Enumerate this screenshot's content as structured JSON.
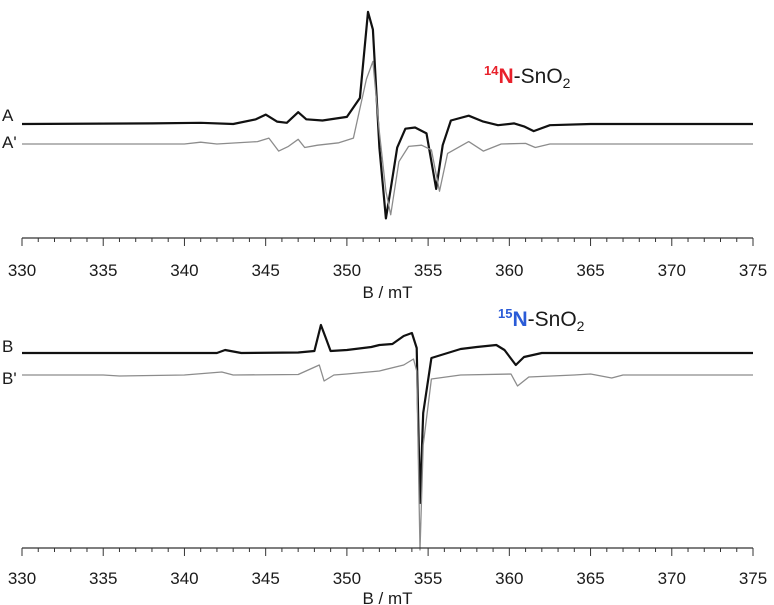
{
  "colors": {
    "experimental": "#111111",
    "simulated": "#8c8c8c",
    "axis": "#333333",
    "n14": "#e8212b",
    "n15": "#2a5bd7"
  },
  "chart_data": [
    {
      "type": "line",
      "title": "",
      "xlabel": "B / mT",
      "ylabel": "",
      "xlim": [
        330,
        375
      ],
      "x_ticks": [
        "330",
        "335",
        "340",
        "345",
        "350",
        "355",
        "360",
        "365",
        "370",
        "375"
      ],
      "annotation": {
        "isotope": "14",
        "element": "N",
        "rest": "-SnO",
        "subscript": "2"
      },
      "series": [
        {
          "name": "A",
          "role": "experimental",
          "offset": 0,
          "points": [
            [
              330,
              0
            ],
            [
              338,
              0.5
            ],
            [
              341,
              1
            ],
            [
              343,
              0
            ],
            [
              344.4,
              4
            ],
            [
              345,
              8
            ],
            [
              345.7,
              2
            ],
            [
              346.3,
              1
            ],
            [
              347,
              10
            ],
            [
              347.5,
              4
            ],
            [
              348.5,
              3
            ],
            [
              350,
              6
            ],
            [
              350.8,
              22
            ],
            [
              351.3,
              95
            ],
            [
              351.6,
              80
            ],
            [
              352.0,
              -20
            ],
            [
              352.4,
              -80
            ],
            [
              352.7,
              -55
            ],
            [
              353.1,
              -20
            ],
            [
              353.6,
              -4
            ],
            [
              354.2,
              -3
            ],
            [
              354.9,
              -8
            ],
            [
              355.5,
              -55
            ],
            [
              355.9,
              -18
            ],
            [
              356.4,
              3
            ],
            [
              357.5,
              7
            ],
            [
              358.4,
              2
            ],
            [
              359.3,
              -1
            ],
            [
              360.3,
              0.5
            ],
            [
              360.9,
              -2
            ],
            [
              361.5,
              -6
            ],
            [
              362.5,
              -1
            ],
            [
              365,
              0
            ],
            [
              375,
              0
            ]
          ]
        },
        {
          "name": "A'",
          "role": "simulated",
          "offset": 0,
          "points": [
            [
              330,
              0
            ],
            [
              340,
              0
            ],
            [
              341,
              1.5
            ],
            [
              342,
              0
            ],
            [
              344.5,
              2
            ],
            [
              345.2,
              5
            ],
            [
              345.8,
              -6
            ],
            [
              346.4,
              -2
            ],
            [
              347,
              4
            ],
            [
              347.4,
              -3
            ],
            [
              348.2,
              -1
            ],
            [
              349.5,
              1
            ],
            [
              350.4,
              5
            ],
            [
              351.2,
              55
            ],
            [
              351.6,
              70
            ],
            [
              352.0,
              10
            ],
            [
              352.4,
              -40
            ],
            [
              352.7,
              -60
            ],
            [
              353.2,
              -15
            ],
            [
              353.8,
              -2
            ],
            [
              354.6,
              -1
            ],
            [
              355.2,
              -5
            ],
            [
              355.7,
              -40
            ],
            [
              356.2,
              -8
            ],
            [
              357.5,
              2
            ],
            [
              358.4,
              -6
            ],
            [
              359.5,
              0
            ],
            [
              361,
              0.5
            ],
            [
              361.6,
              -3
            ],
            [
              362.5,
              0
            ],
            [
              375,
              0
            ]
          ]
        }
      ]
    },
    {
      "type": "line",
      "title": "",
      "xlabel": "B / mT",
      "ylabel": "",
      "xlim": [
        330,
        375
      ],
      "x_ticks": [
        "330",
        "335",
        "340",
        "345",
        "350",
        "355",
        "360",
        "365",
        "370",
        "375"
      ],
      "annotation": {
        "isotope": "15",
        "element": "N",
        "rest": "-SnO",
        "subscript": "2"
      },
      "series": [
        {
          "name": "B",
          "role": "experimental",
          "offset": 0,
          "points": [
            [
              330,
              0
            ],
            [
              342,
              0
            ],
            [
              342.5,
              3
            ],
            [
              343.5,
              0
            ],
            [
              347,
              0.5
            ],
            [
              348,
              2
            ],
            [
              348.4,
              28
            ],
            [
              348.7,
              15
            ],
            [
              349.0,
              2
            ],
            [
              350,
              3
            ],
            [
              351.5,
              6
            ],
            [
              352,
              8
            ],
            [
              352.8,
              9
            ],
            [
              353.5,
              17
            ],
            [
              354.0,
              20
            ],
            [
              354.3,
              5
            ],
            [
              354.5,
              -150
            ],
            [
              354.7,
              -60
            ],
            [
              355.2,
              -5
            ],
            [
              357,
              4
            ],
            [
              358,
              6
            ],
            [
              359.2,
              8
            ],
            [
              359.7,
              3
            ],
            [
              360.4,
              -12
            ],
            [
              360.9,
              -4
            ],
            [
              362,
              0
            ],
            [
              375,
              0
            ]
          ]
        },
        {
          "name": "B'",
          "role": "simulated",
          "offset": 0,
          "points": [
            [
              330,
              0
            ],
            [
              335,
              0
            ],
            [
              336,
              -1
            ],
            [
              340,
              0
            ],
            [
              342.3,
              3
            ],
            [
              343,
              0
            ],
            [
              347,
              0.5
            ],
            [
              348.3,
              10
            ],
            [
              348.6,
              -6
            ],
            [
              349.2,
              0
            ],
            [
              350,
              1
            ],
            [
              352,
              4
            ],
            [
              353.5,
              10
            ],
            [
              354.1,
              16
            ],
            [
              354.3,
              4
            ],
            [
              354.5,
              -175
            ],
            [
              354.7,
              -70
            ],
            [
              355.2,
              -4
            ],
            [
              357,
              0
            ],
            [
              360.1,
              1
            ],
            [
              360.5,
              -11
            ],
            [
              361.2,
              -2
            ],
            [
              364,
              0
            ],
            [
              365,
              1
            ],
            [
              366.3,
              -3
            ],
            [
              367,
              0
            ],
            [
              375,
              0
            ]
          ]
        }
      ]
    }
  ]
}
